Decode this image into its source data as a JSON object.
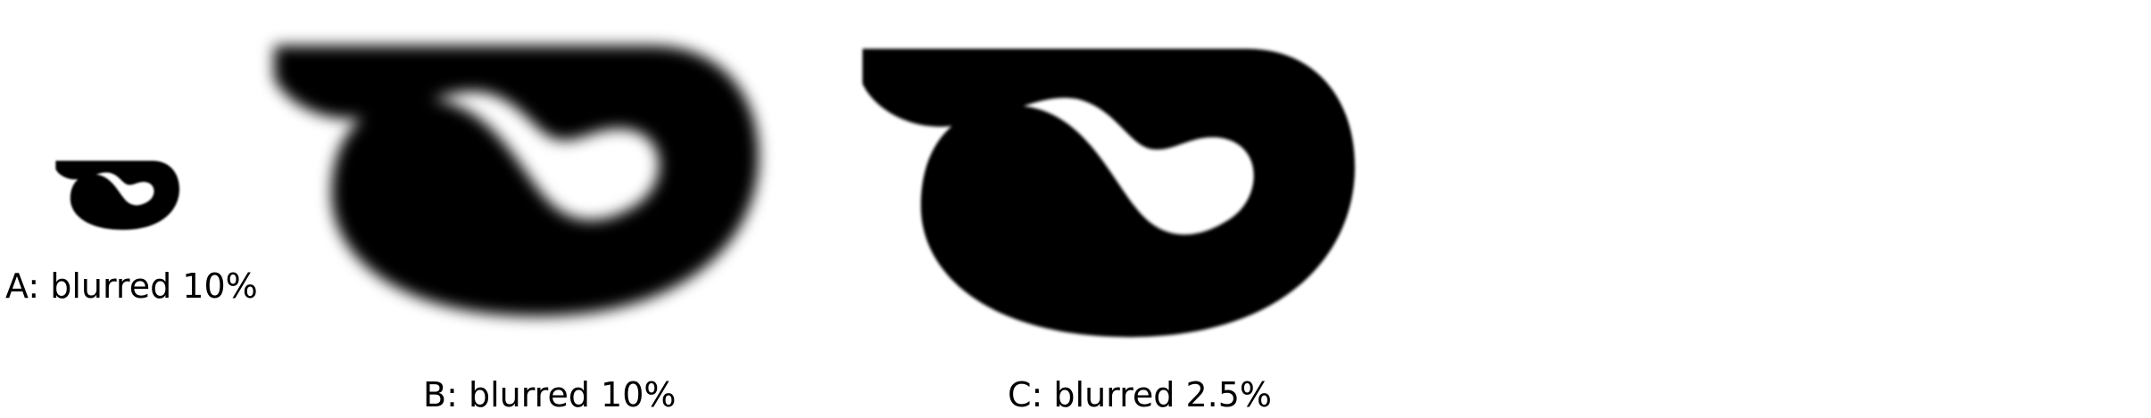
{
  "figures": [
    {
      "id": "a",
      "caption": "A: blurred 10%"
    },
    {
      "id": "b",
      "caption": "B: blurred 10%"
    },
    {
      "id": "c",
      "caption": "C: blurred 2.5%"
    }
  ],
  "colors": {
    "shape": "#000000",
    "background": "#ffffff"
  }
}
